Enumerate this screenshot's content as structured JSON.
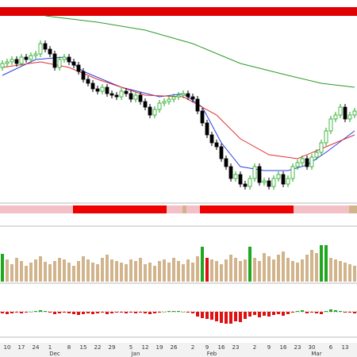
{
  "chart_data": [
    {
      "type": "candlestick",
      "ylim": [
        50,
        290
      ],
      "up_color": "#ffffff",
      "up_stroke": "#1fa81f",
      "down_color": "#000000",
      "categories": [
        null,
        "10",
        null,
        null,
        "17",
        null,
        null,
        "24",
        null,
        null,
        "1",
        null,
        null,
        null,
        "8",
        null,
        null,
        "15",
        null,
        null,
        "22",
        null,
        null,
        "29",
        null,
        null,
        null,
        "5",
        null,
        null,
        "12",
        null,
        null,
        "19",
        null,
        null,
        "26",
        null,
        null,
        null,
        "2",
        null,
        null,
        "9",
        null,
        null,
        "16",
        null,
        null,
        "23",
        null,
        null,
        null,
        "2",
        null,
        null,
        "9",
        null,
        null,
        "16",
        null,
        null,
        "23",
        null,
        null,
        "30",
        null,
        null,
        null,
        "6",
        null,
        null,
        "13",
        null,
        null
      ],
      "months": [
        null,
        null,
        null,
        null,
        null,
        null,
        null,
        null,
        null,
        null,
        null,
        "Dec",
        null,
        null,
        null,
        null,
        null,
        null,
        null,
        null,
        null,
        null,
        null,
        null,
        null,
        null,
        null,
        null,
        "Jan",
        null,
        null,
        null,
        null,
        null,
        null,
        null,
        null,
        null,
        null,
        null,
        null,
        null,
        null,
        null,
        "Feb",
        null,
        null,
        null,
        null,
        null,
        null,
        null,
        null,
        null,
        null,
        null,
        null,
        null,
        null,
        null,
        null,
        null,
        null,
        null,
        null,
        null,
        "Mar",
        null,
        null,
        null,
        null,
        null,
        null,
        null,
        null
      ],
      "open": [
        215,
        220,
        222,
        225,
        220,
        228,
        225,
        230,
        232,
        245,
        238,
        232,
        215,
        225,
        228,
        222,
        218,
        210,
        200,
        195,
        188,
        185,
        190,
        182,
        180,
        178,
        185,
        182,
        175,
        180,
        172,
        165,
        155,
        162,
        170,
        172,
        175,
        178,
        180,
        182,
        178,
        175,
        160,
        145,
        130,
        120,
        115,
        100,
        90,
        75,
        80,
        68,
        65,
        75,
        90,
        70,
        72,
        65,
        75,
        80,
        68,
        75,
        90,
        95,
        100,
        90,
        102,
        108,
        120,
        135,
        150,
        155,
        165,
        150,
        155
      ],
      "high": [
        224,
        226,
        229,
        229,
        232,
        232,
        234,
        236,
        249,
        249,
        242,
        236,
        229,
        232,
        232,
        226,
        222,
        214,
        204,
        199,
        192,
        194,
        194,
        186,
        184,
        189,
        189,
        186,
        184,
        184,
        176,
        169,
        166,
        174,
        176,
        179,
        182,
        184,
        186,
        186,
        182,
        179,
        164,
        149,
        134,
        124,
        119,
        104,
        94,
        84,
        84,
        72,
        79,
        94,
        94,
        76,
        76,
        79,
        84,
        84,
        79,
        94,
        99,
        104,
        104,
        106,
        112,
        124,
        139,
        154,
        159,
        169,
        169,
        159,
        164
      ],
      "low": [
        211,
        216,
        218,
        216,
        216,
        221,
        221,
        226,
        228,
        234,
        228,
        211,
        211,
        221,
        218,
        214,
        206,
        196,
        191,
        184,
        181,
        181,
        178,
        176,
        174,
        174,
        178,
        171,
        171,
        168,
        161,
        151,
        151,
        158,
        166,
        168,
        171,
        174,
        176,
        174,
        171,
        156,
        141,
        126,
        116,
        111,
        96,
        86,
        71,
        71,
        64,
        61,
        61,
        71,
        66,
        66,
        61,
        61,
        71,
        64,
        64,
        71,
        86,
        91,
        86,
        86,
        98,
        104,
        116,
        131,
        146,
        151,
        146,
        146,
        151
      ],
      "close": [
        220,
        222,
        225,
        220,
        228,
        225,
        230,
        232,
        245,
        238,
        232,
        215,
        225,
        228,
        222,
        218,
        210,
        200,
        195,
        188,
        185,
        190,
        182,
        180,
        178,
        185,
        182,
        175,
        180,
        172,
        165,
        155,
        162,
        170,
        172,
        175,
        178,
        180,
        182,
        178,
        175,
        160,
        145,
        130,
        120,
        115,
        100,
        90,
        75,
        80,
        68,
        65,
        75,
        90,
        70,
        72,
        65,
        75,
        80,
        68,
        75,
        90,
        95,
        100,
        90,
        102,
        108,
        120,
        135,
        150,
        155,
        165,
        150,
        155,
        160
      ],
      "series": [
        {
          "color": "#2b3fe0",
          "x": [
            0,
            7,
            13,
            17,
            25,
            33,
            38,
            42,
            46,
            50,
            55,
            60,
            64,
            68,
            74
          ],
          "values": [
            205,
            225,
            228,
            210,
            190,
            178,
            182,
            165,
            120,
            90,
            85,
            85,
            92,
            108,
            135
          ]
        },
        {
          "color": "#e03030",
          "x": [
            0,
            8,
            14,
            20,
            30,
            38,
            45,
            50,
            56,
            62,
            68,
            74
          ],
          "values": [
            215,
            222,
            215,
            200,
            180,
            178,
            155,
            125,
            105,
            100,
            115,
            130
          ]
        },
        {
          "color": "#2a9a2a",
          "x": [
            9,
            20,
            30,
            40,
            50,
            60,
            67,
            74
          ],
          "values": [
            280,
            272,
            262,
            245,
            220,
            205,
            195,
            190
          ]
        }
      ]
    },
    {
      "type": "bar",
      "ylim": [
        0,
        70
      ],
      "color": "#d2b48c",
      "highlight_colors": {
        "0": "#1fa81f",
        "42": "#1fa81f",
        "43": "#e01010",
        "52": "#1fa81f",
        "67": "#1fa81f",
        "68": "#1fa81f"
      },
      "values": [
        35,
        28,
        22,
        30,
        26,
        20,
        24,
        28,
        32,
        25,
        22,
        26,
        30,
        28,
        24,
        20,
        26,
        32,
        28,
        24,
        22,
        30,
        34,
        28,
        26,
        24,
        22,
        28,
        26,
        30,
        22,
        24,
        20,
        26,
        28,
        24,
        30,
        26,
        22,
        28,
        24,
        32,
        44,
        30,
        28,
        26,
        22,
        28,
        34,
        30,
        26,
        28,
        44,
        30,
        26,
        36,
        32,
        28,
        34,
        38,
        30,
        26,
        24,
        28,
        34,
        40,
        36,
        46,
        46,
        30,
        28,
        26,
        24,
        22,
        20
      ]
    },
    {
      "type": "histogram-bar",
      "ylim": [
        -17,
        33
      ],
      "up_color": "#1fa81f",
      "down_color": "#e01010",
      "values": [
        -2,
        -3,
        -2,
        -1,
        -2,
        -1,
        0,
        1,
        2,
        1,
        -1,
        -3,
        -2,
        -1,
        -2,
        -3,
        -4,
        -3,
        -2,
        -3,
        -2,
        -1,
        -3,
        -2,
        -1,
        -1,
        -2,
        -1,
        -2,
        -1,
        -2,
        -3,
        -2,
        -1,
        0,
        1,
        1,
        1,
        0,
        -1,
        -2,
        -6,
        -8,
        -9,
        -10,
        -12,
        -14,
        -15,
        -15,
        -12,
        -13,
        -9,
        -6,
        -4,
        -7,
        -5,
        -6,
        -4,
        -3,
        -5,
        -3,
        -1,
        1,
        2,
        -2,
        -1,
        -2,
        -3,
        1,
        3,
        2,
        1,
        -1,
        -1,
        -2
      ]
    }
  ]
}
